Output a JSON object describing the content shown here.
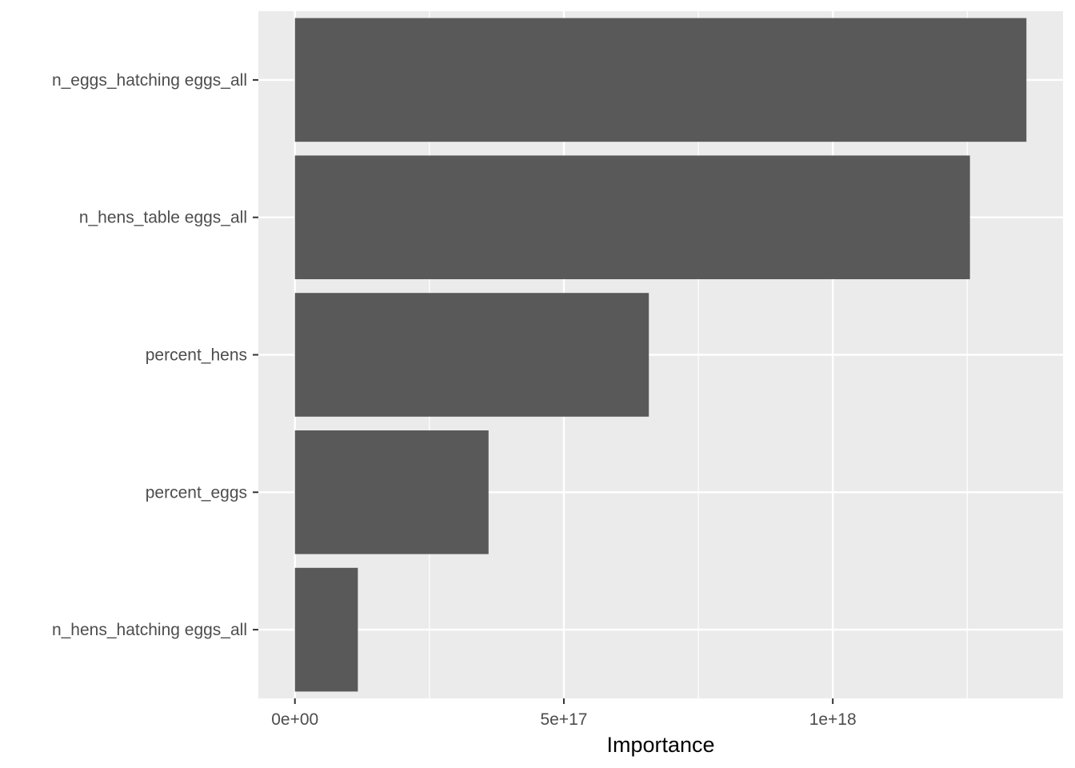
{
  "chart_data": {
    "type": "bar",
    "orientation": "horizontal",
    "categories": [
      "n_eggs_hatching eggs_all",
      "n_hens_table eggs_all",
      "percent_hens",
      "percent_eggs",
      "n_hens_hatching eggs_all"
    ],
    "values": [
      1.36e+18,
      1.255e+18,
      6.58e+17,
      3.6e+17,
      1.17e+17
    ],
    "title": "",
    "xlabel": "Importance",
    "ylabel": "",
    "xlim": [
      -6.8e+16,
      1.428e+18
    ],
    "x_ticks": [
      0,
      5e+17,
      1e+18
    ],
    "x_tick_labels": [
      "0e+00",
      "5e+17",
      "1e+18"
    ],
    "grid": true,
    "bar_color": "#595959",
    "panel_color": "#ebebeb",
    "gridline_color": "#ffffff"
  }
}
